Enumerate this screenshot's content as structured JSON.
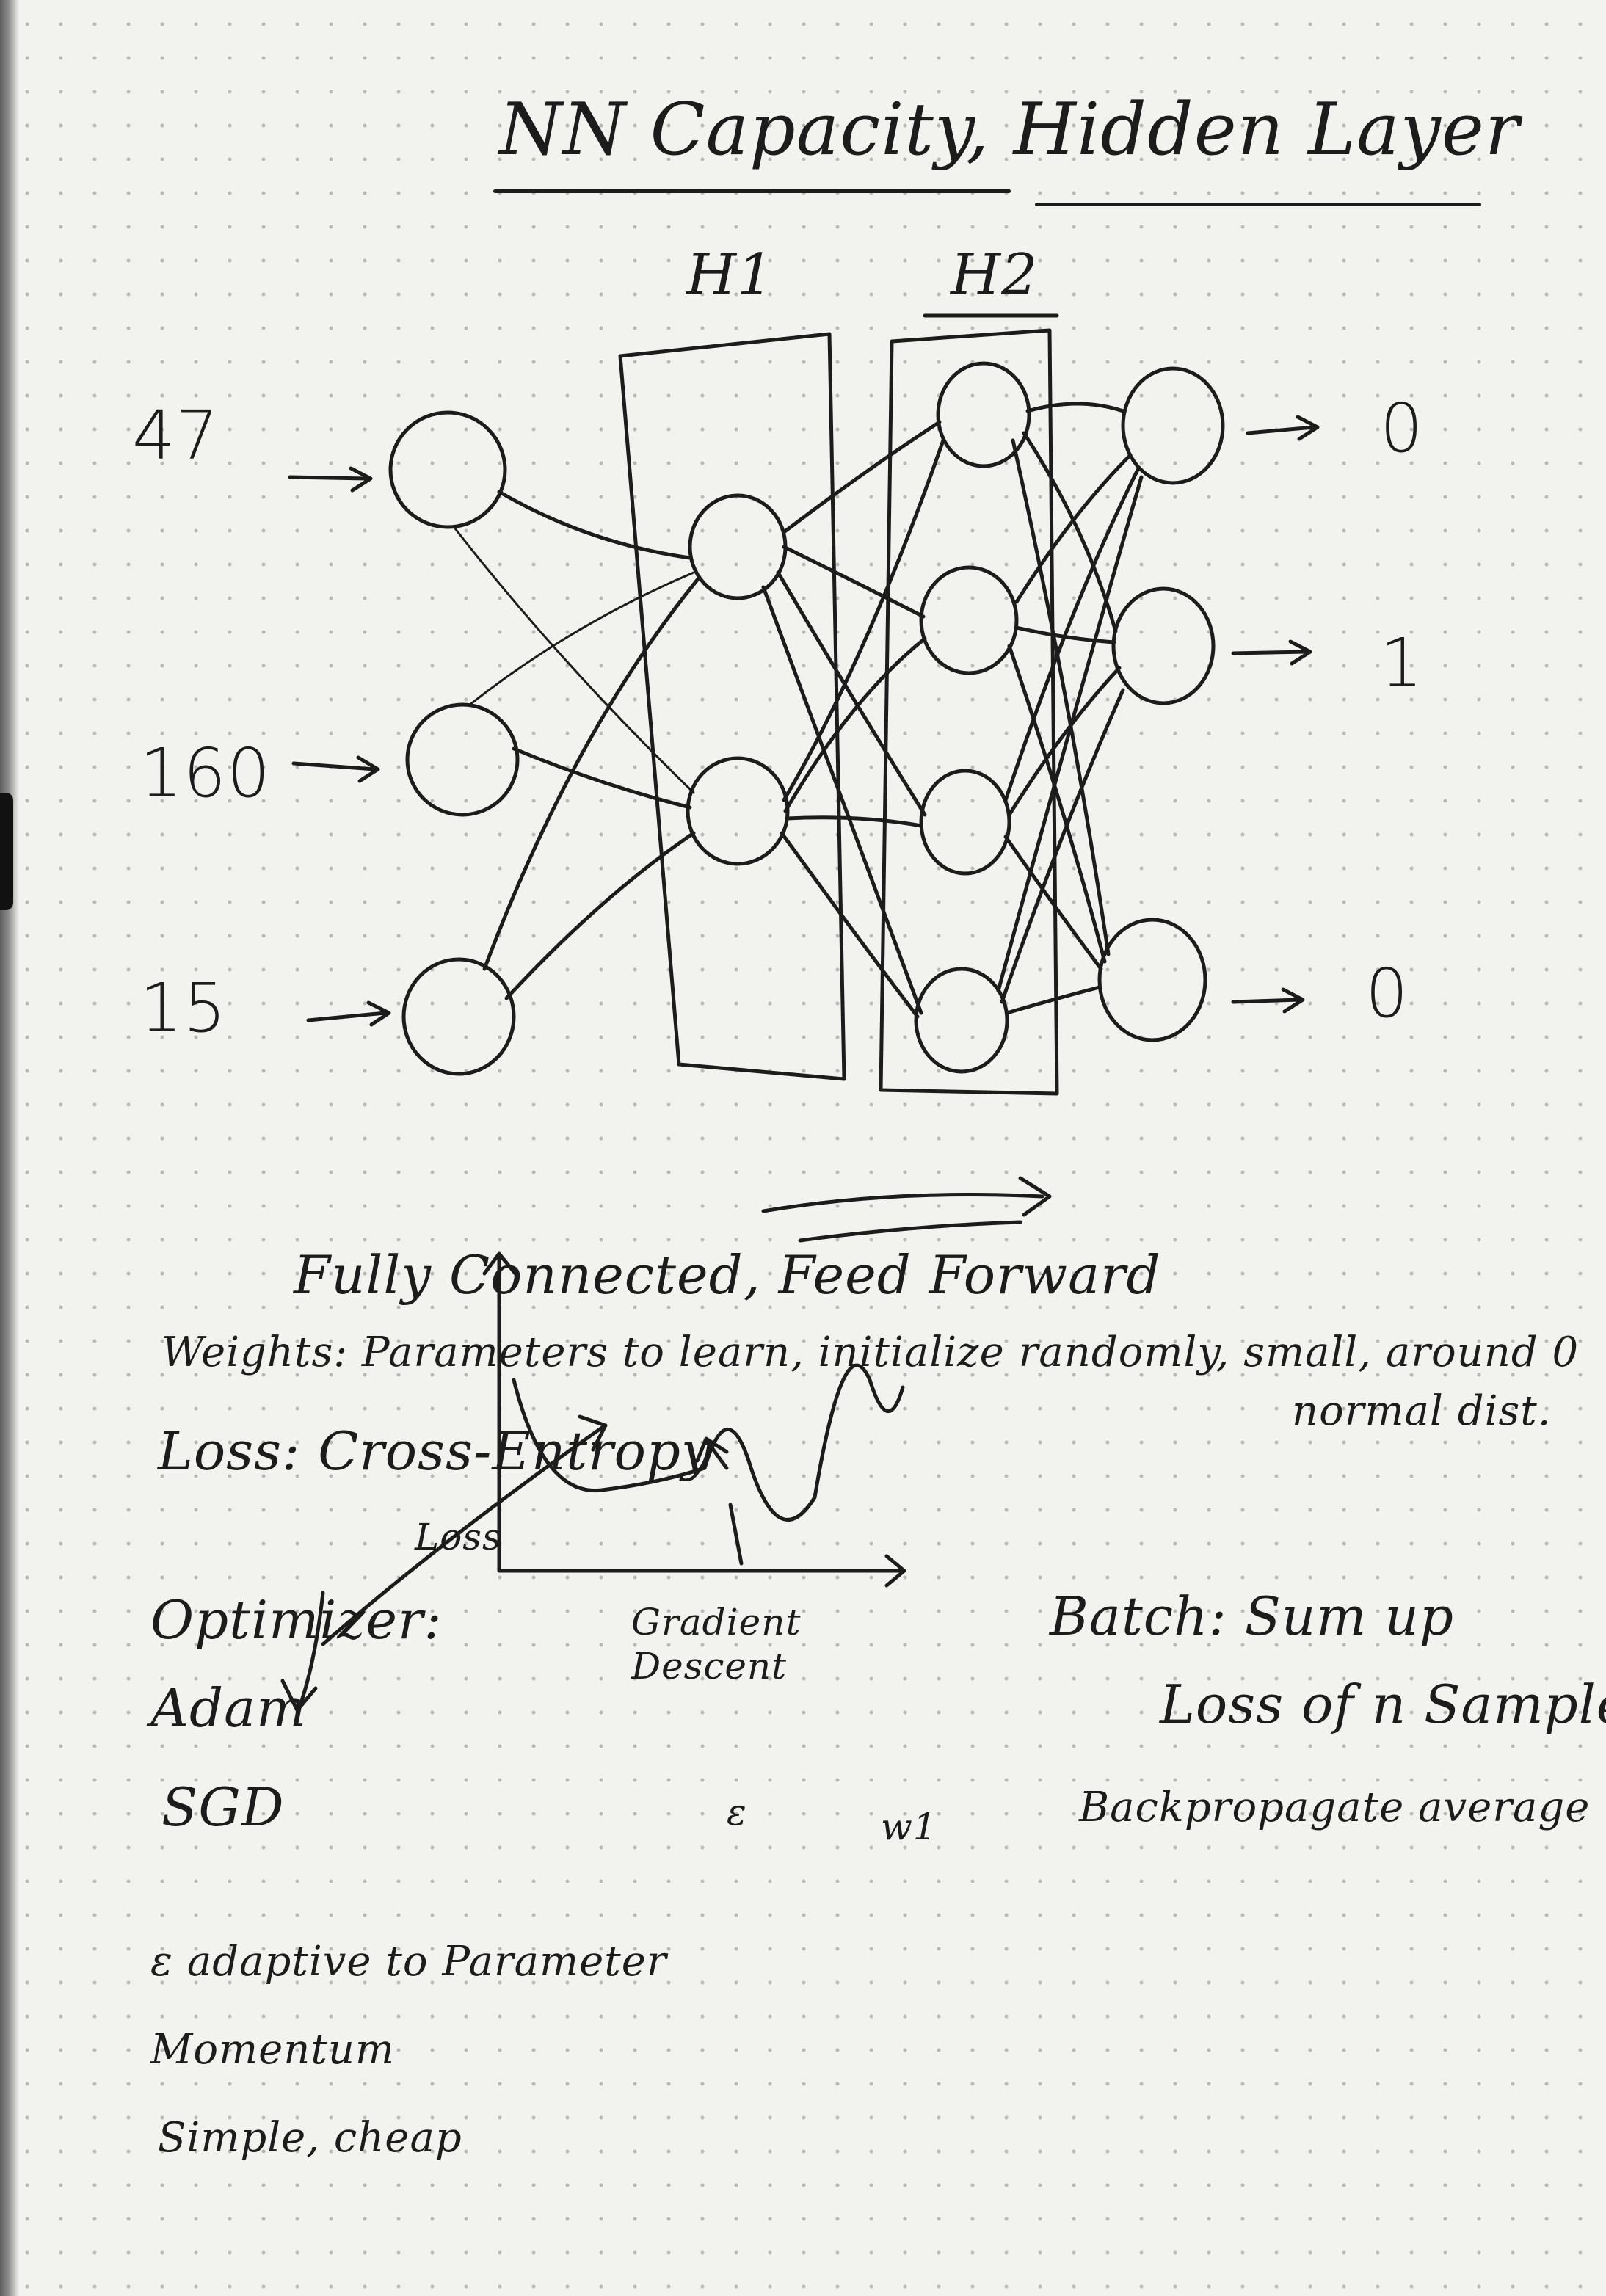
{
  "title": "NN Capacity, Hidden Layer",
  "layers": {
    "hidden1": "H1",
    "hidden2": "H2"
  },
  "inputs": [
    "47",
    "160",
    "15"
  ],
  "outputs": [
    "0",
    "1",
    "0"
  ],
  "subtitle": "Fully Connected, Feed Forward",
  "weights_note": "Weights: Parameters to learn, initialize randomly, small, around 0",
  "weights_note_2": "normal dist.",
  "loss_note": "Loss: Cross-Entropy",
  "optimizer": {
    "heading": "Optimizer:",
    "items": [
      "Adam",
      "SGD"
    ]
  },
  "loss_graph": {
    "y_label": "Loss",
    "x_label": "w1",
    "epsilon_label": "ε",
    "annotation": "Gradient Descent"
  },
  "batch_note": {
    "line1": "Batch: Sum up",
    "line2": "Loss of n Samples",
    "line3": "Backpropagate average"
  },
  "optimizer_notes": [
    "ε adaptive to Parameter",
    "Momentum",
    "Simple, cheap"
  ]
}
